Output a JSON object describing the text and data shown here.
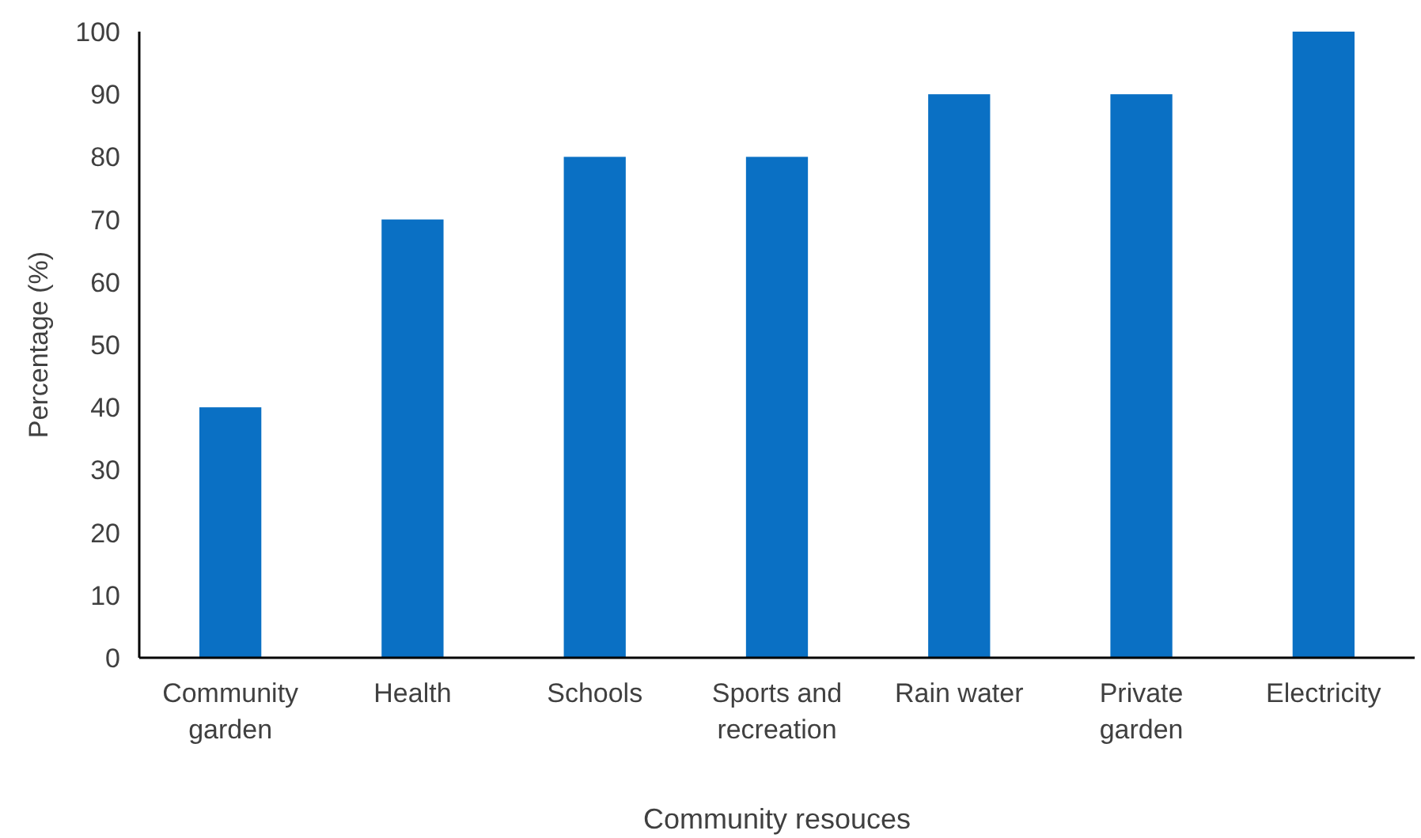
{
  "chart_data": {
    "type": "bar",
    "xlabel": "Community resouces",
    "ylabel": "Percentage (%)",
    "categories": [
      "Community garden",
      "Health",
      "Schools",
      "Sports and recreation",
      "Rain water",
      "Private garden",
      "Electricity"
    ],
    "values": [
      40,
      70,
      80,
      80,
      90,
      90,
      100
    ],
    "color": "#0a70c4",
    "ylim": [
      0,
      100
    ],
    "yticks": [
      0,
      10,
      20,
      30,
      40,
      50,
      60,
      70,
      80,
      90,
      100
    ],
    "grid": false
  }
}
